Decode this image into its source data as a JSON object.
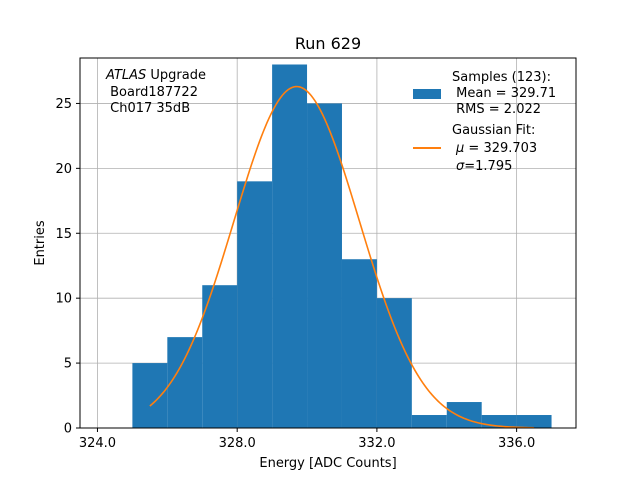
{
  "chart_data": {
    "type": "bar",
    "title": "Run 629",
    "xlabel": "Energy [ADC Counts]",
    "ylabel": "Entries",
    "xlim": [
      323.5,
      337.7
    ],
    "ylim": [
      0,
      28.5
    ],
    "grid": true,
    "xticks": [
      324.0,
      328.0,
      332.0,
      336.0
    ],
    "xtick_labels": [
      "324.0",
      "328.0",
      "332.0",
      "336.0"
    ],
    "yticks": [
      0,
      5,
      10,
      15,
      20,
      25
    ],
    "yticks_labels": [
      "0",
      "5",
      "10",
      "15",
      "20",
      "25"
    ],
    "bar_color": "#1f77b4",
    "fit_color": "#ff7f0e",
    "bins": [
      {
        "left": 325,
        "right": 326,
        "value": 5
      },
      {
        "left": 326,
        "right": 327,
        "value": 7
      },
      {
        "left": 327,
        "right": 328,
        "value": 11
      },
      {
        "left": 328,
        "right": 329,
        "value": 19
      },
      {
        "left": 329,
        "right": 330,
        "value": 28
      },
      {
        "left": 330,
        "right": 331,
        "value": 25
      },
      {
        "left": 331,
        "right": 332,
        "value": 13
      },
      {
        "left": 332,
        "right": 333,
        "value": 10
      },
      {
        "left": 333,
        "right": 334,
        "value": 1
      },
      {
        "left": 334,
        "right": 335,
        "value": 2
      },
      {
        "left": 335,
        "right": 336,
        "value": 1
      },
      {
        "left": 336,
        "right": 337,
        "value": 1
      }
    ],
    "fit": {
      "amplitude": 26.3,
      "mu": 329.703,
      "sigma": 1.795,
      "x_range": [
        325.5,
        336.5
      ]
    },
    "annotation": {
      "line1_italic": "ATLAS",
      "line1_rest": " Upgrade",
      "line2": " Board187722",
      "line3": " Ch017 35dB"
    },
    "legend": {
      "position": "top-right",
      "samples_line1": "Samples (123):",
      "samples_line2": " Mean = 329.71",
      "samples_line3": " RMS = 2.022",
      "fit_line1": "Gaussian Fit:",
      "fit_line2_sym": "μ",
      "fit_line2_rest": " = 329.703",
      "fit_line3_sym": "σ",
      "fit_line3_rest": "=1.795"
    }
  }
}
